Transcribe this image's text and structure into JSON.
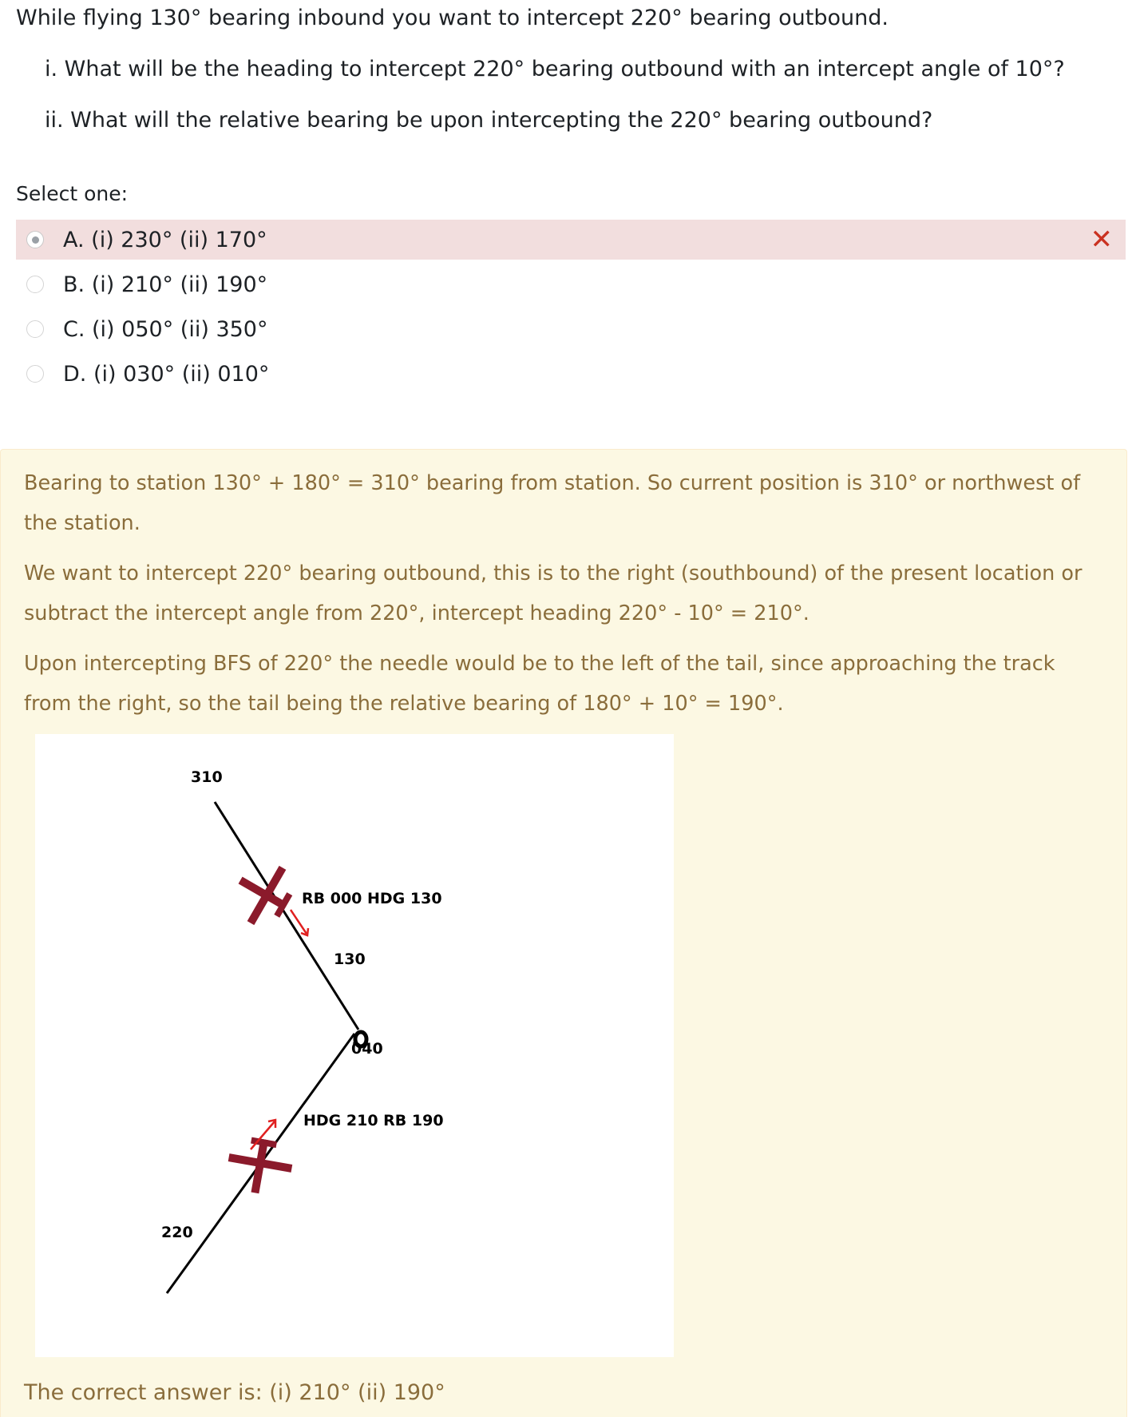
{
  "question": {
    "main": "While flying 130° bearing inbound you want to intercept 220° bearing outbound.",
    "part_i": "i. What will be the heading to intercept 220° bearing outbound with an intercept angle of 10°?",
    "part_ii": "ii. What will the relative bearing be upon intercepting the 220° bearing outbound?"
  },
  "prompt": "Select one:",
  "options": [
    {
      "label": "A. (i) 230° (ii) 170°",
      "selected": true,
      "status": "incorrect"
    },
    {
      "label": "B. (i) 210° (ii) 190°",
      "selected": false
    },
    {
      "label": "C. (i) 050° (ii) 350°",
      "selected": false
    },
    {
      "label": "D. (i) 030° (ii) 010°",
      "selected": false
    }
  ],
  "feedback": {
    "p1": "Bearing to station 130° + 180° = 310° bearing from station. So current position is 310° or northwest of the station.",
    "p2": "We want to intercept 220° bearing outbound, this is to the right (southbound) of the present location or subtract the intercept angle from 220°, intercept heading 220° - 10° = 210°.",
    "p3": "Upon intercepting BFS of 220° the needle would be to the left of the tail, since approaching the track from the right, so the tail being the relative bearing of 180° + 10° = 190°.",
    "correct_answer": "The correct answer is: (i) 210° (ii) 190°"
  },
  "diagram": {
    "label_310": "310",
    "label_upper_aircraft": "RB 000  HDG 130",
    "label_130": "130",
    "label_station": "0",
    "label_040": "040",
    "label_lower_aircraft": "HDG 210  RB 190",
    "label_220": "220"
  },
  "colors": {
    "incorrect_bg": "#f2dede",
    "incorrect_icon": "#ca3120",
    "feedback_bg": "#fcf8e3",
    "feedback_text": "#8a6d3b",
    "aircraft": "#8b1a2b",
    "arrow": "#e02020"
  }
}
